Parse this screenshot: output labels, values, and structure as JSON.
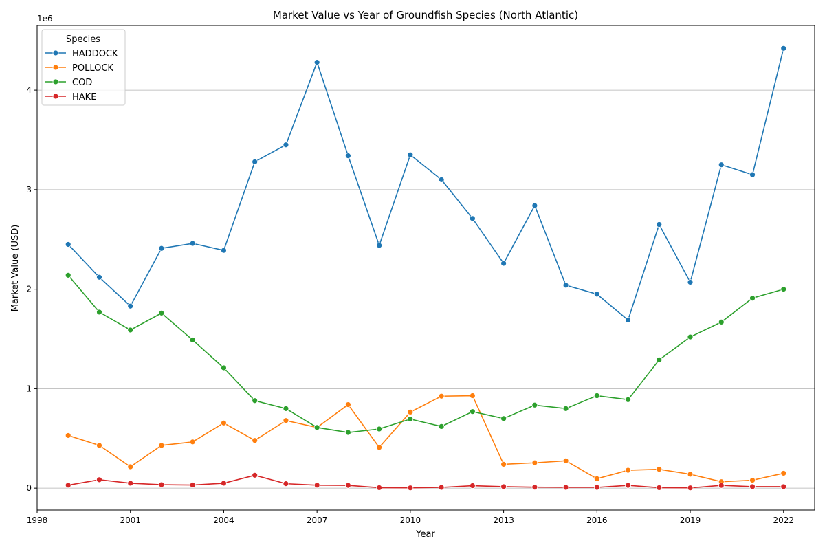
{
  "chart_data": {
    "type": "line",
    "title": "Market Value vs Year of Groundfish Species (North Atlantic)",
    "xlabel": "Year",
    "ylabel": "Market Value (USD)",
    "y_offset_label": "1e6",
    "xlim": [
      1998,
      2023
    ],
    "ylim": [
      -220000,
      4650000
    ],
    "x_ticks": [
      1998,
      2001,
      2004,
      2007,
      2010,
      2013,
      2016,
      2019,
      2022
    ],
    "y_ticks": [
      0,
      1000000,
      2000000,
      3000000,
      4000000
    ],
    "y_tick_labels": [
      "0",
      "1",
      "2",
      "3",
      "4"
    ],
    "grid": "horizontal",
    "legend": {
      "title": "Species",
      "placement": "top-left"
    },
    "x": [
      1999,
      2000,
      2001,
      2002,
      2003,
      2004,
      2005,
      2006,
      2007,
      2008,
      2009,
      2010,
      2011,
      2012,
      2013,
      2014,
      2015,
      2016,
      2017,
      2018,
      2019,
      2020,
      2021,
      2022
    ],
    "series": [
      {
        "name": "HADDOCK",
        "color": "#1f77b4",
        "values": [
          2450000,
          2120000,
          1830000,
          2410000,
          2460000,
          2390000,
          3280000,
          3450000,
          4280000,
          3340000,
          2440000,
          3350000,
          3100000,
          2710000,
          2260000,
          2840000,
          2040000,
          1950000,
          1690000,
          2650000,
          2070000,
          3250000,
          3150000,
          4420000
        ]
      },
      {
        "name": "POLLOCK",
        "color": "#ff7f0e",
        "values": [
          530000,
          430000,
          215000,
          430000,
          465000,
          655000,
          480000,
          680000,
          610000,
          840000,
          410000,
          765000,
          925000,
          930000,
          240000,
          255000,
          275000,
          95000,
          180000,
          190000,
          140000,
          65000,
          80000,
          150000
        ]
      },
      {
        "name": "COD",
        "color": "#2ca02c",
        "values": [
          2140000,
          1770000,
          1590000,
          1760000,
          1490000,
          1210000,
          880000,
          800000,
          610000,
          560000,
          595000,
          695000,
          620000,
          770000,
          700000,
          835000,
          800000,
          930000,
          890000,
          1290000,
          1520000,
          1670000,
          1910000,
          2000000
        ]
      },
      {
        "name": "HAKE",
        "color": "#d62728",
        "values": [
          30000,
          85000,
          50000,
          35000,
          32000,
          50000,
          130000,
          45000,
          30000,
          28000,
          5000,
          3000,
          8000,
          25000,
          15000,
          10000,
          8000,
          8000,
          28000,
          5000,
          3000,
          28000,
          15000,
          15000
        ]
      }
    ]
  }
}
